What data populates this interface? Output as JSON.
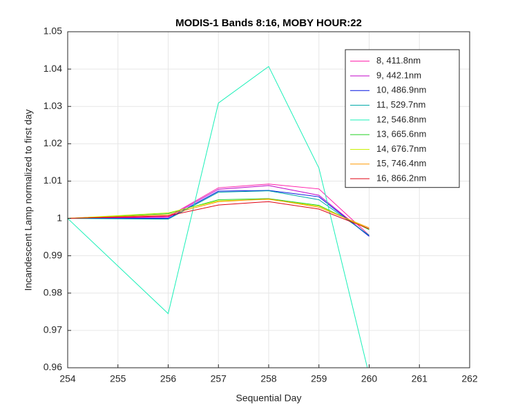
{
  "chart_data": {
    "type": "line",
    "title": "MODIS-1 Bands 8:16, MOBY HOUR:22",
    "x_label": "Sequential Day",
    "y_label": "Incandescent Lamp normalized to first day",
    "x": [
      254,
      256,
      257,
      258,
      259,
      260
    ],
    "xlim": [
      254,
      262
    ],
    "xticks": [
      254,
      255,
      256,
      257,
      258,
      259,
      260,
      261,
      262
    ],
    "ylim": [
      0.96,
      1.05
    ],
    "yticks": [
      0.96,
      0.97,
      0.98,
      0.99,
      1,
      1.01,
      1.02,
      1.03,
      1.04,
      1.05
    ],
    "grid": true,
    "legend": "northeast",
    "series": [
      {
        "name": "8, 411.8nm",
        "color": "#ff1aa8",
        "values": [
          1.0,
          1.0005,
          1.0082,
          1.0092,
          1.0079,
          0.9955
        ]
      },
      {
        "name": "9, 442.1nm",
        "color": "#c000c8",
        "values": [
          1.0,
          1.0003,
          1.0078,
          1.0088,
          1.0062,
          0.9953
        ]
      },
      {
        "name": "10, 486.9nm",
        "color": "#0010e0",
        "values": [
          1.0,
          1.0,
          1.0073,
          1.0075,
          1.0058,
          0.9952
        ]
      },
      {
        "name": "11, 529.7nm",
        "color": "#00a8a8",
        "values": [
          1.0,
          0.9998,
          1.007,
          1.0074,
          1.005,
          0.9955
        ]
      },
      {
        "name": "12, 546.8nm",
        "color": "#19f0b8",
        "values": [
          1.0,
          0.9745,
          1.0309,
          1.0407,
          1.0135,
          0.958
        ]
      },
      {
        "name": "13, 665.6nm",
        "color": "#20d020",
        "values": [
          1.0,
          1.0013,
          1.005,
          1.0053,
          1.0035,
          0.997
        ]
      },
      {
        "name": "14, 676.7nm",
        "color": "#c8f000",
        "values": [
          1.0,
          1.0015,
          1.0047,
          1.0051,
          1.0033,
          0.9972
        ]
      },
      {
        "name": "15, 746.4nm",
        "color": "#ff9900",
        "values": [
          1.0,
          1.001,
          1.0045,
          1.0052,
          1.003,
          0.9975
        ]
      },
      {
        "name": "16, 866.2nm",
        "color": "#e00010",
        "values": [
          1.0,
          1.0007,
          1.0036,
          1.0045,
          1.0025,
          0.9972
        ]
      }
    ]
  }
}
